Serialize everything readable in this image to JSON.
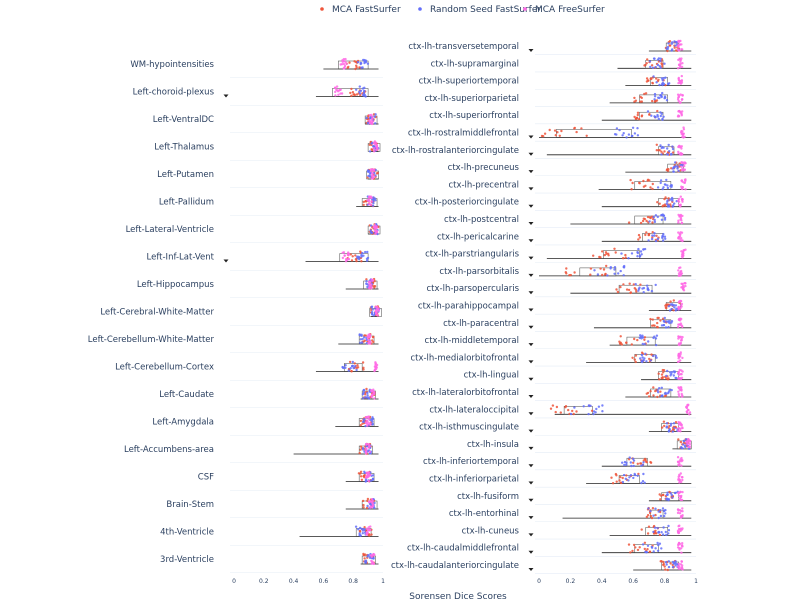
{
  "chart_data": {
    "type": "scatter",
    "xlabel": "Sorensen Dice Scores",
    "xlim": [
      0,
      1
    ],
    "xticks": [
      "0",
      "0.2",
      "0.4",
      "0.6",
      "0.8",
      "1"
    ],
    "legend_position": "top",
    "series": [
      {
        "name": "MCA FastSurfer",
        "color": "#ef553b"
      },
      {
        "name": "Random Seed FastSurfer",
        "color": "#636efa"
      },
      {
        "name": "MCA FreeSurfer",
        "color": "#ff6ae5"
      }
    ],
    "panels": [
      {
        "categories": [
          {
            "label": "WM-hypointensities",
            "fast": 0.8,
            "seed": 0.86,
            "free": 0.74,
            "min": 0.6,
            "marker": false
          },
          {
            "label": "Left-choroid-plexus",
            "fast": 0.83,
            "seed": 0.86,
            "free": 0.7,
            "min": 0.55,
            "marker": true
          },
          {
            "label": "Left-VentralDC",
            "fast": 0.92,
            "seed": 0.92,
            "free": 0.92,
            "min": 0.88,
            "marker": false
          },
          {
            "label": "Left-Thalamus",
            "fast": 0.94,
            "seed": 0.94,
            "free": 0.95,
            "min": 0.92,
            "marker": false
          },
          {
            "label": "Left-Putamen",
            "fast": 0.93,
            "seed": 0.93,
            "free": 0.93,
            "min": 0.9,
            "marker": false
          },
          {
            "label": "Left-Pallidum",
            "fast": 0.9,
            "seed": 0.92,
            "free": 0.91,
            "min": 0.82,
            "marker": false
          },
          {
            "label": "Left-Lateral-Ventricle",
            "fast": 0.94,
            "seed": 0.94,
            "free": 0.95,
            "min": 0.9,
            "marker": false
          },
          {
            "label": "Left-Inf-Lat-Vent",
            "fast": 0.8,
            "seed": 0.86,
            "free": 0.75,
            "min": 0.48,
            "marker": true
          },
          {
            "label": "Left-Hippocampus",
            "fast": 0.91,
            "seed": 0.92,
            "free": 0.92,
            "min": 0.75,
            "marker": false
          },
          {
            "label": "Left-Cerebral-White-Matter",
            "fast": 0.95,
            "seed": 0.95,
            "free": 0.96,
            "min": 0.92,
            "marker": false
          },
          {
            "label": "Left-Cerebellum-White-Matter",
            "fast": 0.9,
            "seed": 0.88,
            "free": 0.9,
            "min": 0.7,
            "marker": false
          },
          {
            "label": "Left-Cerebellum-Cortex",
            "fast": 0.82,
            "seed": 0.78,
            "free": 0.95,
            "min": 0.55,
            "marker": false
          },
          {
            "label": "Left-Caudate",
            "fast": 0.91,
            "seed": 0.9,
            "free": 0.93,
            "min": 0.85,
            "marker": false
          },
          {
            "label": "Left-Amygdala",
            "fast": 0.88,
            "seed": 0.9,
            "free": 0.9,
            "min": 0.68,
            "marker": false
          },
          {
            "label": "Left-Accumbens-area",
            "fast": 0.88,
            "seed": 0.89,
            "free": 0.9,
            "min": 0.4,
            "marker": false
          },
          {
            "label": "CSF",
            "fast": 0.88,
            "seed": 0.9,
            "free": 0.9,
            "min": 0.75,
            "marker": false
          },
          {
            "label": "Brain-Stem",
            "fast": 0.9,
            "seed": 0.92,
            "free": 0.92,
            "min": 0.75,
            "marker": false
          },
          {
            "label": "4th-Ventricle",
            "fast": 0.88,
            "seed": 0.86,
            "free": 0.9,
            "min": 0.44,
            "marker": false
          },
          {
            "label": "3rd-Ventricle",
            "fast": 0.9,
            "seed": 0.91,
            "free": 0.93,
            "min": 0.85,
            "marker": false
          }
        ]
      },
      {
        "categories": [
          {
            "label": "ctx-lh-transversetemporal",
            "fast": 0.85,
            "seed": 0.85,
            "free": 0.9,
            "min": 0.7,
            "marker": true
          },
          {
            "label": "ctx-lh-supramarginal",
            "fast": 0.72,
            "seed": 0.75,
            "free": 0.9,
            "min": 0.5,
            "marker": false
          },
          {
            "label": "ctx-lh-superiortemporal",
            "fast": 0.75,
            "seed": 0.78,
            "free": 0.9,
            "min": 0.55,
            "marker": false
          },
          {
            "label": "ctx-lh-superiorparietal",
            "fast": 0.68,
            "seed": 0.78,
            "free": 0.9,
            "min": 0.45,
            "marker": false
          },
          {
            "label": "ctx-lh-superiorfrontal",
            "fast": 0.68,
            "seed": 0.75,
            "free": 0.9,
            "min": 0.4,
            "marker": false
          },
          {
            "label": "ctx-lh-rostralmiddlefrontal",
            "fast": 0.15,
            "seed": 0.55,
            "free": 0.92,
            "min": 0.0,
            "marker": true
          },
          {
            "label": "ctx-lh-rostralanteriorcingulate",
            "fast": 0.8,
            "seed": 0.82,
            "free": 0.9,
            "min": 0.05,
            "marker": true
          },
          {
            "label": "ctx-lh-precuneus",
            "fast": 0.86,
            "seed": 0.88,
            "free": 0.92,
            "min": 0.55,
            "marker": true
          },
          {
            "label": "ctx-lh-precentral",
            "fast": 0.65,
            "seed": 0.8,
            "free": 0.92,
            "min": 0.38,
            "marker": true
          },
          {
            "label": "ctx-lh-posteriorcingulate",
            "fast": 0.8,
            "seed": 0.85,
            "free": 0.9,
            "min": 0.4,
            "marker": true
          },
          {
            "label": "ctx-lh-postcentral",
            "fast": 0.65,
            "seed": 0.75,
            "free": 0.9,
            "min": 0.2,
            "marker": true
          },
          {
            "label": "ctx-lh-pericalcarine",
            "fast": 0.7,
            "seed": 0.75,
            "free": 0.9,
            "min": 0.4,
            "marker": true
          },
          {
            "label": "ctx-lh-parstriangularis",
            "fast": 0.45,
            "seed": 0.6,
            "free": 0.92,
            "min": 0.05,
            "marker": true
          },
          {
            "label": "ctx-lh-parsorbitalis",
            "fast": 0.3,
            "seed": 0.45,
            "free": 0.9,
            "min": 0.0,
            "marker": true
          },
          {
            "label": "ctx-lh-parsopercularis",
            "fast": 0.55,
            "seed": 0.68,
            "free": 0.92,
            "min": 0.2,
            "marker": true
          },
          {
            "label": "ctx-lh-parahippocampal",
            "fast": 0.85,
            "seed": 0.86,
            "free": 0.9,
            "min": 0.7,
            "marker": true
          },
          {
            "label": "ctx-lh-paracentral",
            "fast": 0.75,
            "seed": 0.8,
            "free": 0.9,
            "min": 0.35,
            "marker": true
          },
          {
            "label": "ctx-lh-middletemporal",
            "fast": 0.6,
            "seed": 0.7,
            "free": 0.9,
            "min": 0.45,
            "marker": true
          },
          {
            "label": "ctx-lh-medialorbitofrontal",
            "fast": 0.65,
            "seed": 0.7,
            "free": 0.9,
            "min": 0.3,
            "marker": true
          },
          {
            "label": "ctx-lh-lingual",
            "fast": 0.8,
            "seed": 0.85,
            "free": 0.9,
            "min": 0.65,
            "marker": true
          },
          {
            "label": "ctx-lh-lateralorbitofrontal",
            "fast": 0.75,
            "seed": 0.8,
            "free": 0.9,
            "min": 0.55,
            "marker": true
          },
          {
            "label": "ctx-lh-lateraloccipital",
            "fast": 0.2,
            "seed": 0.3,
            "free": 0.95,
            "min": 0.1,
            "marker": true
          },
          {
            "label": "ctx-lh-isthmuscingulate",
            "fast": 0.82,
            "seed": 0.85,
            "free": 0.9,
            "min": 0.7,
            "marker": true
          },
          {
            "label": "ctx-lh-insula",
            "fast": 0.92,
            "seed": 0.93,
            "free": 0.95,
            "min": 0.85,
            "marker": true
          },
          {
            "label": "ctx-lh-inferiortemporal",
            "fast": 0.65,
            "seed": 0.6,
            "free": 0.9,
            "min": 0.4,
            "marker": true
          },
          {
            "label": "ctx-lh-inferiorparietal",
            "fast": 0.55,
            "seed": 0.6,
            "free": 0.9,
            "min": 0.3,
            "marker": true
          },
          {
            "label": "ctx-lh-fusiform",
            "fast": 0.82,
            "seed": 0.85,
            "free": 0.9,
            "min": 0.7,
            "marker": true
          },
          {
            "label": "ctx-lh-entorhinal",
            "fast": 0.75,
            "seed": 0.75,
            "free": 0.9,
            "min": 0.15,
            "marker": true
          },
          {
            "label": "ctx-lh-cuneus",
            "fast": 0.72,
            "seed": 0.78,
            "free": 0.9,
            "min": 0.45,
            "marker": true
          },
          {
            "label": "ctx-lh-caudalmiddlefrontal",
            "fast": 0.65,
            "seed": 0.72,
            "free": 0.9,
            "min": 0.4,
            "marker": true
          },
          {
            "label": "ctx-lh-caudalanteriorcingulate",
            "fast": 0.82,
            "seed": 0.85,
            "free": 0.9,
            "min": 0.6,
            "marker": true
          }
        ]
      }
    ]
  }
}
